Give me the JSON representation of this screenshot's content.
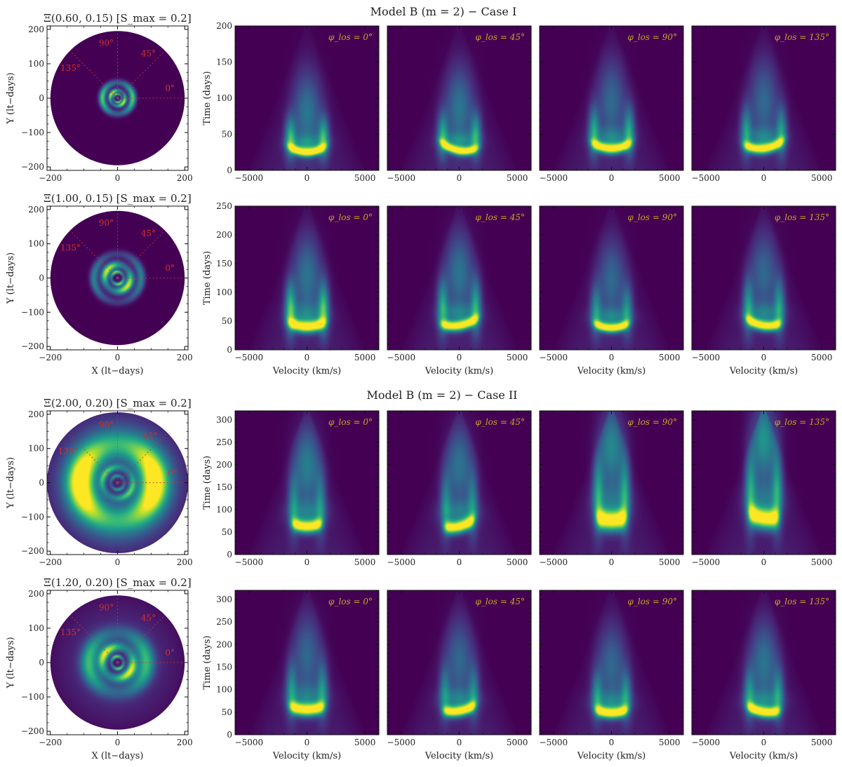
{
  "figure": {
    "suptitles": [
      "Model B (m = 2)  −  Case I",
      "Model B (m = 2)  −  Case II"
    ],
    "colors": {
      "viridis_dark": "#440154",
      "viridis_mid": "#21918c",
      "viridis_yellow": "#fde725",
      "guide_red": "#d03030",
      "label_gold": "#c9a227"
    }
  },
  "chart_data": [
    {
      "type": "heatmap",
      "kind": "disk-map",
      "title": "Ξ(0.60, 0.15) [S_max = 0.2]",
      "xlabel": "",
      "ylabel": "Y (lt−days)",
      "xlim": [
        -210,
        210
      ],
      "ylim": [
        -210,
        210
      ],
      "xticks": [
        -200,
        0,
        200
      ],
      "yticks": [
        -200,
        -100,
        0,
        100,
        200
      ],
      "x_ticklabels": [
        "−200",
        "0",
        "200"
      ],
      "y_ticklabels": [
        "−200",
        "−100",
        "0",
        "100",
        "200"
      ],
      "disk_radius": 200,
      "angle_labels": [
        "0°",
        "45°",
        "90°",
        "135°"
      ],
      "angles_deg": [
        0,
        45,
        90,
        135
      ],
      "rings": [
        {
          "r": 45,
          "w": 10,
          "intensity": 0.75
        },
        {
          "r": 22,
          "w": 6,
          "intensity": 0.95
        },
        {
          "r": 12,
          "w": 3,
          "intensity": 0.8
        }
      ],
      "background_intensity": 0.0
    },
    {
      "type": "heatmap",
      "kind": "disk-map",
      "title": "Ξ(1.00, 0.15) [S_max = 0.2]",
      "xlabel": "X (lt−days)",
      "ylabel": "Y (lt−days)",
      "xlim": [
        -210,
        210
      ],
      "ylim": [
        -210,
        210
      ],
      "xticks": [
        -200,
        0,
        200
      ],
      "yticks": [
        -200,
        -100,
        0,
        100,
        200
      ],
      "x_ticklabels": [
        "−200",
        "0",
        "200"
      ],
      "y_ticklabels": [
        "−200",
        "−100",
        "0",
        "100",
        "200"
      ],
      "disk_radius": 200,
      "angle_labels": [
        "0°",
        "45°",
        "90°",
        "135°"
      ],
      "angles_deg": [
        0,
        45,
        90,
        135
      ],
      "rings": [
        {
          "r": 70,
          "w": 12,
          "intensity": 0.45
        },
        {
          "r": 38,
          "w": 12,
          "intensity": 0.95
        },
        {
          "r": 18,
          "w": 5,
          "intensity": 0.8
        }
      ],
      "background_intensity": 0.0
    },
    {
      "type": "heatmap",
      "kind": "disk-map",
      "title": "Ξ(2.00, 0.20) [S_max = 0.2]",
      "xlabel": "",
      "ylabel": "Y (lt−days)",
      "xlim": [
        -210,
        210
      ],
      "ylim": [
        -210,
        210
      ],
      "xticks": [
        -200,
        0,
        200
      ],
      "yticks": [
        -200,
        -100,
        0,
        100,
        200
      ],
      "x_ticklabels": [
        "−200",
        "0",
        "200"
      ],
      "y_ticklabels": [
        "−200",
        "−100",
        "0",
        "100",
        "200"
      ],
      "disk_radius": 210,
      "angle_labels": [
        "0°",
        "45°",
        "90°",
        "135°"
      ],
      "angles_deg": [
        0,
        45,
        90,
        135
      ],
      "rings": [
        {
          "r": 110,
          "w": 40,
          "intensity": 0.95
        },
        {
          "r": 45,
          "w": 10,
          "intensity": 0.55
        },
        {
          "r": 20,
          "w": 5,
          "intensity": 0.45
        }
      ],
      "background_intensity": 0.3
    },
    {
      "type": "heatmap",
      "kind": "disk-map",
      "title": "Ξ(1.20, 0.20) [S_max = 0.2]",
      "xlabel": "X (lt−days)",
      "ylabel": "Y (lt−days)",
      "xlim": [
        -210,
        210
      ],
      "ylim": [
        -210,
        210
      ],
      "xticks": [
        -200,
        0,
        200
      ],
      "yticks": [
        -200,
        -100,
        0,
        100,
        200
      ],
      "x_ticklabels": [
        "−200",
        "0",
        "200"
      ],
      "y_ticklabels": [
        "−200",
        "−100",
        "0",
        "100",
        "200"
      ],
      "disk_radius": 200,
      "angle_labels": [
        "0°",
        "45°",
        "90°",
        "135°"
      ],
      "angles_deg": [
        0,
        45,
        90,
        135
      ],
      "rings": [
        {
          "r": 85,
          "w": 25,
          "intensity": 0.6
        },
        {
          "r": 45,
          "w": 14,
          "intensity": 0.9
        },
        {
          "r": 18,
          "w": 5,
          "intensity": 0.75
        }
      ],
      "background_intensity": 0.1
    },
    {
      "type": "heatmap",
      "kind": "transfer-function-row",
      "xlabel": "",
      "ylabel": "Time (days)",
      "xlim": [
        -6200,
        6200
      ],
      "ylim": [
        0,
        200
      ],
      "xticks": [
        -5000,
        0,
        5000
      ],
      "yticks": [
        0,
        50,
        100,
        150,
        200
      ],
      "x_ticklabels": [
        "−5000",
        "0",
        "5000"
      ],
      "y_ticklabels": [
        "0",
        "50",
        "100",
        "150",
        "200"
      ],
      "panel_labels": [
        "φ_los = 0°",
        "φ_los = 45°",
        "φ_los = 90°",
        "φ_los = 135°"
      ],
      "panels": [
        {
          "ring_time": 25,
          "ring_width": 6,
          "ring_halfwidth_v": 1600,
          "ridge_strength": 0.55,
          "upper_strength": 0.35,
          "tilt": 0
        },
        {
          "ring_time": 27,
          "ring_width": 6,
          "ring_halfwidth_v": 1600,
          "ridge_strength": 0.5,
          "upper_strength": 0.35,
          "tilt": -4
        },
        {
          "ring_time": 30,
          "ring_width": 7,
          "ring_halfwidth_v": 1700,
          "ridge_strength": 0.5,
          "upper_strength": 0.3,
          "tilt": 0
        },
        {
          "ring_time": 30,
          "ring_width": 7,
          "ring_halfwidth_v": 1700,
          "ridge_strength": 0.45,
          "upper_strength": 0.3,
          "tilt": 3
        }
      ]
    },
    {
      "type": "heatmap",
      "kind": "transfer-function-row",
      "xlabel": "Velocity (km/s)",
      "ylabel": "Time (days)",
      "xlim": [
        -6200,
        6200
      ],
      "ylim": [
        0,
        250
      ],
      "xticks": [
        -5000,
        0,
        5000
      ],
      "yticks": [
        0,
        50,
        100,
        150,
        200,
        250
      ],
      "x_ticklabels": [
        "−5000",
        "0",
        "5000"
      ],
      "y_ticklabels": [
        "0",
        "50",
        "100",
        "150",
        "200",
        "250"
      ],
      "panel_labels": [
        "φ_los = 0°",
        "φ_los = 45°",
        "φ_los = 90°",
        "φ_los = 135°"
      ],
      "panels": [
        {
          "ring_time": 40,
          "ring_width": 10,
          "ring_halfwidth_v": 1600,
          "ridge_strength": 0.6,
          "upper_strength": 0.35,
          "tilt": 0
        },
        {
          "ring_time": 42,
          "ring_width": 9,
          "ring_halfwidth_v": 1600,
          "ridge_strength": 0.5,
          "upper_strength": 0.35,
          "tilt": 5
        },
        {
          "ring_time": 38,
          "ring_width": 8,
          "ring_halfwidth_v": 1500,
          "ridge_strength": 0.4,
          "upper_strength": 0.3,
          "tilt": 0
        },
        {
          "ring_time": 42,
          "ring_width": 9,
          "ring_halfwidth_v": 1500,
          "ridge_strength": 0.45,
          "upper_strength": 0.3,
          "tilt": -4
        }
      ]
    },
    {
      "type": "heatmap",
      "kind": "transfer-function-row",
      "xlabel": "",
      "ylabel": "Time (days)",
      "xlim": [
        -6200,
        6200
      ],
      "ylim": [
        0,
        320
      ],
      "xticks": [
        -5000,
        0,
        5000
      ],
      "yticks": [
        0,
        50,
        100,
        150,
        200,
        250,
        300
      ],
      "x_ticklabels": [
        "−5000",
        "0",
        "5000"
      ],
      "y_ticklabels": [
        "0",
        "50",
        "100",
        "150",
        "200",
        "250",
        "300"
      ],
      "panel_labels": [
        "φ_los = 0°",
        "φ_los = 45°",
        "φ_los = 90°",
        "φ_los = 135°"
      ],
      "panels": [
        {
          "ring_time": 62,
          "ring_width": 14,
          "ring_halfwidth_v": 1300,
          "ridge_strength": 0.35,
          "upper_strength": 0.4,
          "tilt": 0
        },
        {
          "ring_time": 62,
          "ring_width": 14,
          "ring_halfwidth_v": 1300,
          "ridge_strength": 0.35,
          "upper_strength": 0.35,
          "tilt": 8
        },
        {
          "ring_time": 75,
          "ring_width": 22,
          "ring_halfwidth_v": 1300,
          "ridge_strength": 0.45,
          "upper_strength": 0.45,
          "tilt": 0
        },
        {
          "ring_time": 80,
          "ring_width": 22,
          "ring_halfwidth_v": 1300,
          "ridge_strength": 0.45,
          "upper_strength": 0.5,
          "tilt": -5
        }
      ]
    },
    {
      "type": "heatmap",
      "kind": "transfer-function-row",
      "xlabel": "Velocity (km/s)",
      "ylabel": "Time (days)",
      "xlim": [
        -6200,
        6200
      ],
      "ylim": [
        0,
        320
      ],
      "xticks": [
        -5000,
        0,
        5000
      ],
      "yticks": [
        0,
        50,
        100,
        150,
        200,
        250,
        300
      ],
      "x_ticklabels": [
        "−5000",
        "0",
        "5000"
      ],
      "y_ticklabels": [
        "0",
        "50",
        "100",
        "150",
        "200",
        "250",
        "300"
      ],
      "panel_labels": [
        "φ_los = 0°",
        "φ_los = 45°",
        "φ_los = 90°",
        "φ_los = 135°"
      ],
      "panels": [
        {
          "ring_time": 55,
          "ring_width": 14,
          "ring_halfwidth_v": 1500,
          "ridge_strength": 0.4,
          "upper_strength": 0.3,
          "tilt": 0
        },
        {
          "ring_time": 52,
          "ring_width": 12,
          "ring_halfwidth_v": 1400,
          "ridge_strength": 0.35,
          "upper_strength": 0.3,
          "tilt": 6
        },
        {
          "ring_time": 48,
          "ring_width": 12,
          "ring_halfwidth_v": 1400,
          "ridge_strength": 0.4,
          "upper_strength": 0.3,
          "tilt": 0
        },
        {
          "ring_time": 50,
          "ring_width": 12,
          "ring_halfwidth_v": 1400,
          "ridge_strength": 0.4,
          "upper_strength": 0.35,
          "tilt": -5
        }
      ]
    }
  ]
}
